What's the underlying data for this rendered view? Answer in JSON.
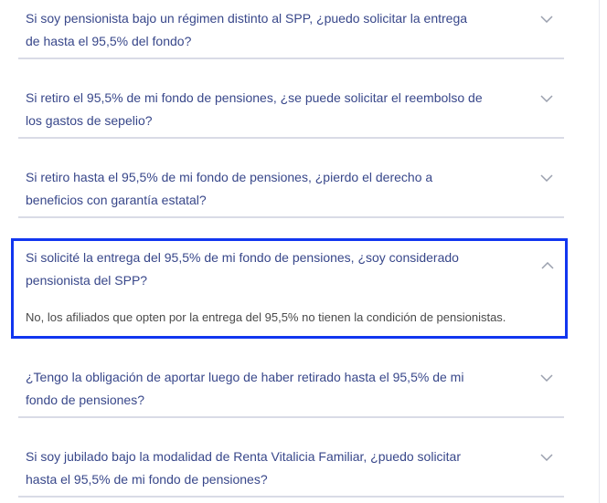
{
  "faq": [
    {
      "question": "Si soy pensionista bajo un régimen distinto al SPP, ¿puedo solicitar la entrega de hasta el 95,5% del fondo?",
      "expanded": false
    },
    {
      "question": "Si retiro el 95,5% de mi fondo de pensiones, ¿se puede solicitar el reembolso de los gastos de sepelio?",
      "expanded": false
    },
    {
      "question": "Si retiro hasta el 95,5% de mi fondo de pensiones, ¿pierdo el derecho a beneficios con garantía estatal?",
      "expanded": false
    },
    {
      "question": "Si solicité la entrega del 95,5% de mi fondo de pensiones, ¿soy considerado pensionista del SPP?",
      "answer": "No, los afiliados que opten por la entrega del 95,5% no tienen la condición de pensionistas.",
      "expanded": true
    },
    {
      "question": "¿Tengo la obligación de aportar luego de haber retirado hasta el 95,5% de mi fondo de pensiones?",
      "expanded": false
    },
    {
      "question": "Si soy jubilado bajo la modalidad de Renta Vitalicia Familiar, ¿puedo solicitar hasta el 95,5% de mi fondo de pensiones?",
      "expanded": false
    }
  ],
  "colors": {
    "question": "#38478a",
    "focus_border": "#1136f0",
    "divider": "#d9dbe6"
  }
}
